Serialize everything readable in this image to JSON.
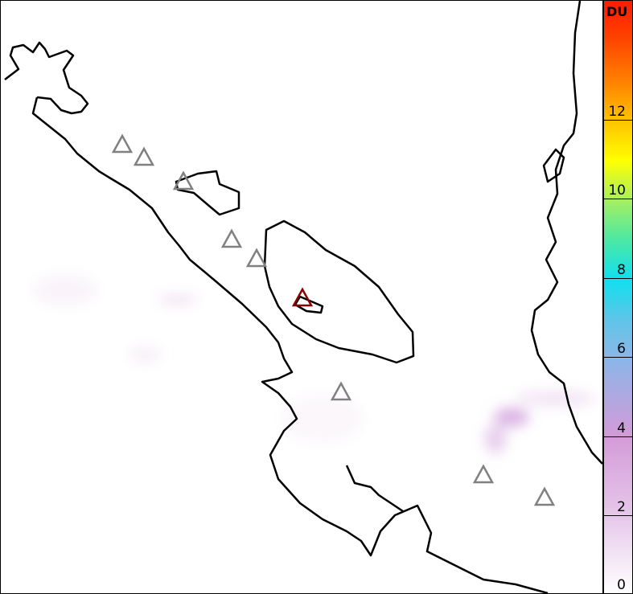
{
  "colorbar": {
    "unit": "DU",
    "range": [
      0,
      15
    ],
    "ticks": [
      "0",
      "2",
      "4",
      "6",
      "8",
      "10",
      "12"
    ],
    "colors": [
      "#ffffff",
      "#d49ad8",
      "#60c4e8",
      "#10e0f0",
      "#a8f060",
      "#ffff00",
      "#ff8000",
      "#ff1a00"
    ]
  },
  "map": {
    "coastline_color": "#000000",
    "volcano_marker_color": "#808080",
    "highlight_volcano_color": "#8b0000",
    "volcano_count": 9,
    "highlighted_volcano_index": 5
  }
}
